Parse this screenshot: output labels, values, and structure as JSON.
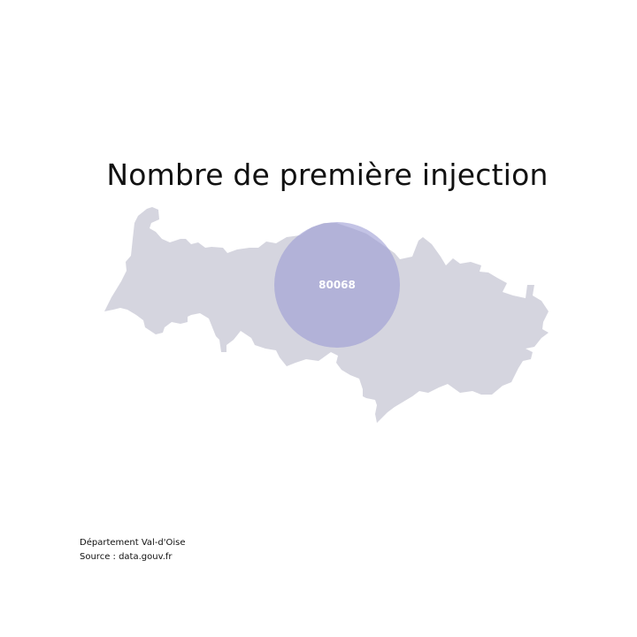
{
  "title": "Nombre de première injection",
  "map": {
    "region_fill": "#d5d5df",
    "bubble_fill": "#9b9bd4",
    "bubble_opacity": 0.6,
    "bubble_label_color": "#ffffff",
    "bubble": {
      "label": "80068",
      "value": 80068
    }
  },
  "footer": {
    "line1": "Département Val-d'Oise",
    "line2": "Source : data.gouv.fr"
  }
}
